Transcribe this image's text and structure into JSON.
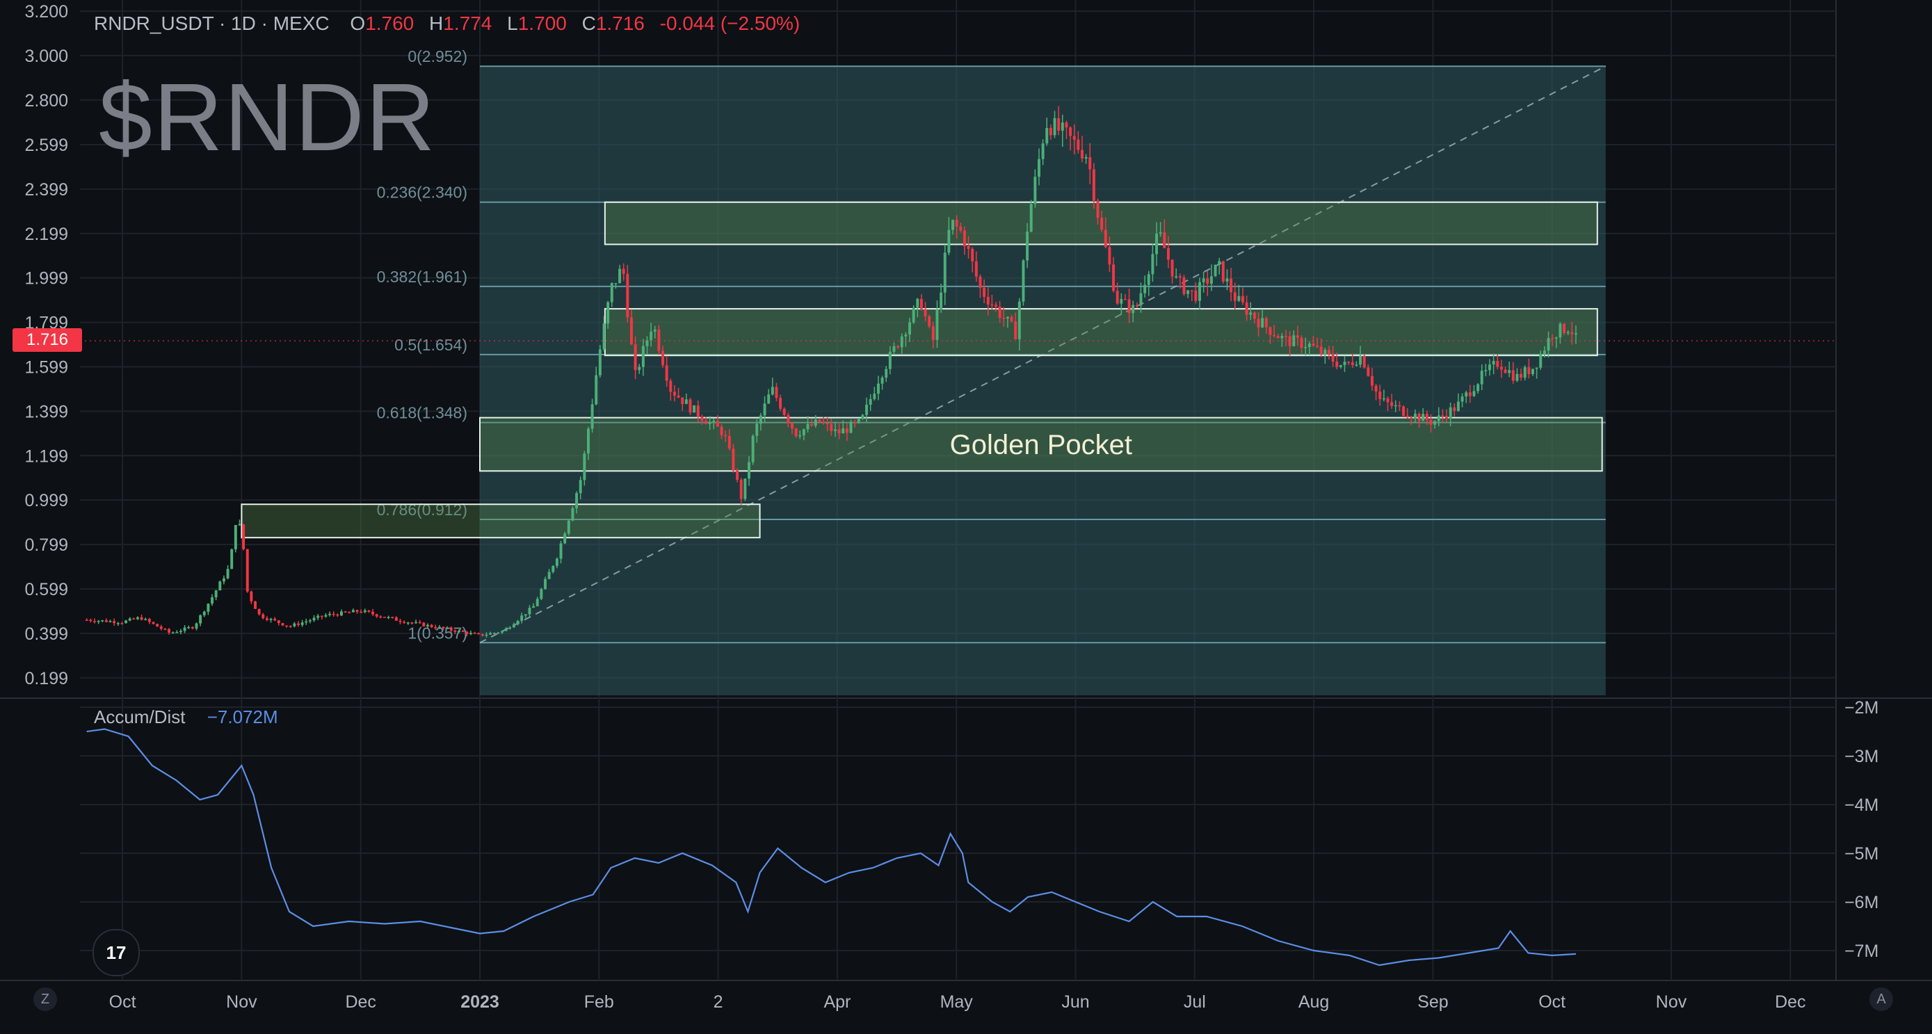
{
  "header": {
    "symbol": "RNDR_USDT · 1D · MEXC",
    "ohlc": [
      {
        "k": "O",
        "v": "1.760"
      },
      {
        "k": "H",
        "v": "1.774"
      },
      {
        "k": "L",
        "v": "1.700"
      },
      {
        "k": "C",
        "v": "1.716"
      },
      {
        "k": "",
        "v": "-0.044 (−2.50%)"
      }
    ]
  },
  "watermark": "$RNDR",
  "last_price": "1.716",
  "indicator": {
    "name": "Accum/Dist",
    "value": "−7.072M"
  },
  "colors": {
    "up": "#26a69a",
    "up_candle": "#4caf78",
    "down": "#f23645",
    "ad_line": "#5b8ee6",
    "fib_zone": "#2f5a5e",
    "box_border": "#e6f2ea"
  },
  "chart_data": [
    {
      "type": "candlestick",
      "title": "",
      "ylabel": "",
      "xlabel": "",
      "y_ticks": [
        "3.200",
        "3.000",
        "2.800",
        "2.599",
        "2.399",
        "2.199",
        "1.999",
        "1.799",
        "1.599",
        "1.399",
        "1.199",
        "0.999",
        "0.799",
        "0.599",
        "0.399",
        "0.199"
      ],
      "y_tick_values": [
        3.2,
        3.0,
        2.8,
        2.599,
        2.399,
        2.199,
        1.999,
        1.799,
        1.599,
        1.399,
        1.199,
        0.999,
        0.799,
        0.599,
        0.399,
        0.199
      ],
      "ylim": [
        0.12,
        3.25
      ],
      "x_ticks": [
        {
          "label": "Oct",
          "month": -3
        },
        {
          "label": "Nov",
          "month": -2
        },
        {
          "label": "Dec",
          "month": -1
        },
        {
          "label": "2023",
          "month": 0
        },
        {
          "label": "Feb",
          "month": 1
        },
        {
          "label": "2",
          "month": 2
        },
        {
          "label": "Apr",
          "month": 3
        },
        {
          "label": "May",
          "month": 4
        },
        {
          "label": "Jun",
          "month": 5
        },
        {
          "label": "Jul",
          "month": 6
        },
        {
          "label": "Aug",
          "month": 7
        },
        {
          "label": "Sep",
          "month": 8
        },
        {
          "label": "Oct",
          "month": 9
        },
        {
          "label": "Nov",
          "month": 10
        },
        {
          "label": "Dec",
          "month": 11
        }
      ],
      "price_path": [
        [
          -3.3,
          0.46
        ],
        [
          -3.0,
          0.45
        ],
        [
          -2.85,
          0.47
        ],
        [
          -2.6,
          0.4
        ],
        [
          -2.4,
          0.43
        ],
        [
          -2.25,
          0.56
        ],
        [
          -2.1,
          0.7
        ],
        [
          -2.05,
          0.9
        ],
        [
          -2.0,
          0.87
        ],
        [
          -1.95,
          0.58
        ],
        [
          -1.85,
          0.48
        ],
        [
          -1.6,
          0.43
        ],
        [
          -1.3,
          0.48
        ],
        [
          -1.0,
          0.5
        ],
        [
          -0.7,
          0.46
        ],
        [
          -0.4,
          0.43
        ],
        [
          0.0,
          0.39
        ],
        [
          0.2,
          0.41
        ],
        [
          0.45,
          0.52
        ],
        [
          0.65,
          0.75
        ],
        [
          0.85,
          1.1
        ],
        [
          1.0,
          1.65
        ],
        [
          1.1,
          1.95
        ],
        [
          1.2,
          2.05
        ],
        [
          1.3,
          1.55
        ],
        [
          1.45,
          1.8
        ],
        [
          1.6,
          1.5
        ],
        [
          1.8,
          1.4
        ],
        [
          2.05,
          1.3
        ],
        [
          2.2,
          1.0
        ],
        [
          2.3,
          1.3
        ],
        [
          2.45,
          1.5
        ],
        [
          2.65,
          1.3
        ],
        [
          2.85,
          1.35
        ],
        [
          3.0,
          1.3
        ],
        [
          3.2,
          1.35
        ],
        [
          3.35,
          1.55
        ],
        [
          3.55,
          1.75
        ],
        [
          3.7,
          1.9
        ],
        [
          3.8,
          1.7
        ],
        [
          3.95,
          2.25
        ],
        [
          4.05,
          2.2
        ],
        [
          4.2,
          1.95
        ],
        [
          4.35,
          1.85
        ],
        [
          4.5,
          1.75
        ],
        [
          4.6,
          2.25
        ],
        [
          4.75,
          2.7
        ],
        [
          4.9,
          2.65
        ],
        [
          5.1,
          2.55
        ],
        [
          5.2,
          2.25
        ],
        [
          5.35,
          1.9
        ],
        [
          5.5,
          1.85
        ],
        [
          5.7,
          2.2
        ],
        [
          5.85,
          1.98
        ],
        [
          6.0,
          1.92
        ],
        [
          6.2,
          2.05
        ],
        [
          6.35,
          1.9
        ],
        [
          6.55,
          1.8
        ],
        [
          6.75,
          1.72
        ],
        [
          6.95,
          1.7
        ],
        [
          7.1,
          1.65
        ],
        [
          7.25,
          1.6
        ],
        [
          7.4,
          1.65
        ],
        [
          7.55,
          1.45
        ],
        [
          7.75,
          1.4
        ],
        [
          8.0,
          1.35
        ],
        [
          8.2,
          1.42
        ],
        [
          8.4,
          1.55
        ],
        [
          8.55,
          1.62
        ],
        [
          8.7,
          1.55
        ],
        [
          8.85,
          1.6
        ],
        [
          9.0,
          1.75
        ],
        [
          9.15,
          1.78
        ],
        [
          9.2,
          1.72
        ]
      ],
      "fibonacci": {
        "start_month": 0.0,
        "end_month": 9.45,
        "top": 2.952,
        "levels": [
          {
            "ratio": "0",
            "price": 2.952,
            "label": "0(2.952)"
          },
          {
            "ratio": "0.236",
            "price": 2.34,
            "label": "0.236(2.340)"
          },
          {
            "ratio": "0.382",
            "price": 1.961,
            "label": "0.382(1.961)"
          },
          {
            "ratio": "0.5",
            "price": 1.654,
            "label": "0.5(1.654)"
          },
          {
            "ratio": "0.618",
            "price": 1.348,
            "label": "0.618(1.348)"
          },
          {
            "ratio": "0.786",
            "price": 0.912,
            "label": "0.786(0.912)"
          },
          {
            "ratio": "1",
            "price": 0.357,
            "label": "1(0.357)"
          }
        ]
      },
      "trendline": {
        "from": [
          0.0,
          0.357
        ],
        "to": [
          9.45,
          2.952
        ]
      },
      "zones": [
        {
          "name": "zone-resistance-upper",
          "x0": 1.05,
          "x1": 9.38,
          "y0": 2.15,
          "y1": 2.34,
          "label": ""
        },
        {
          "name": "zone-resistance-mid",
          "x0": 1.05,
          "x1": 9.38,
          "y0": 1.65,
          "y1": 1.86,
          "label": ""
        },
        {
          "name": "zone-golden-pocket",
          "x0": 0.0,
          "x1": 9.42,
          "y0": 1.13,
          "y1": 1.37,
          "label": "Golden Pocket"
        },
        {
          "name": "zone-support-lower",
          "x0": -2.0,
          "x1": 2.35,
          "y0": 0.83,
          "y1": 0.98,
          "label": ""
        }
      ]
    },
    {
      "type": "line",
      "title": "Accum/Dist",
      "y_ticks": [
        "−2M",
        "−3M",
        "−4M",
        "−5M",
        "−6M",
        "−7M"
      ],
      "y_tick_values": [
        -2,
        -3,
        -4,
        -5,
        -6,
        -7
      ],
      "ylim": [
        -7.4,
        -1.9
      ],
      "series": [
        {
          "name": "Accum/Dist",
          "points": [
            [
              -3.3,
              -2.5
            ],
            [
              -3.15,
              -2.45
            ],
            [
              -2.95,
              -2.6
            ],
            [
              -2.75,
              -3.2
            ],
            [
              -2.55,
              -3.5
            ],
            [
              -2.35,
              -3.9
            ],
            [
              -2.2,
              -3.8
            ],
            [
              -2.0,
              -3.2
            ],
            [
              -1.9,
              -3.8
            ],
            [
              -1.75,
              -5.3
            ],
            [
              -1.6,
              -6.2
            ],
            [
              -1.4,
              -6.5
            ],
            [
              -1.1,
              -6.4
            ],
            [
              -0.8,
              -6.45
            ],
            [
              -0.5,
              -6.4
            ],
            [
              -0.2,
              -6.55
            ],
            [
              0.0,
              -6.65
            ],
            [
              0.2,
              -6.6
            ],
            [
              0.45,
              -6.3
            ],
            [
              0.75,
              -6.0
            ],
            [
              0.95,
              -5.85
            ],
            [
              1.1,
              -5.3
            ],
            [
              1.3,
              -5.1
            ],
            [
              1.5,
              -5.2
            ],
            [
              1.7,
              -5.0
            ],
            [
              1.95,
              -5.25
            ],
            [
              2.15,
              -5.6
            ],
            [
              2.25,
              -6.2
            ],
            [
              2.35,
              -5.4
            ],
            [
              2.5,
              -4.9
            ],
            [
              2.7,
              -5.3
            ],
            [
              2.9,
              -5.6
            ],
            [
              3.1,
              -5.4
            ],
            [
              3.3,
              -5.3
            ],
            [
              3.5,
              -5.1
            ],
            [
              3.7,
              -5.0
            ],
            [
              3.85,
              -5.25
            ],
            [
              3.95,
              -4.6
            ],
            [
              4.05,
              -5.0
            ],
            [
              4.1,
              -5.6
            ],
            [
              4.3,
              -6.0
            ],
            [
              4.45,
              -6.2
            ],
            [
              4.6,
              -5.9
            ],
            [
              4.8,
              -5.8
            ],
            [
              5.0,
              -6.0
            ],
            [
              5.2,
              -6.2
            ],
            [
              5.45,
              -6.4
            ],
            [
              5.65,
              -6.0
            ],
            [
              5.85,
              -6.3
            ],
            [
              6.1,
              -6.3
            ],
            [
              6.4,
              -6.5
            ],
            [
              6.7,
              -6.8
            ],
            [
              7.0,
              -7.0
            ],
            [
              7.3,
              -7.1
            ],
            [
              7.55,
              -7.3
            ],
            [
              7.8,
              -7.2
            ],
            [
              8.05,
              -7.15
            ],
            [
              8.3,
              -7.05
            ],
            [
              8.55,
              -6.95
            ],
            [
              8.65,
              -6.6
            ],
            [
              8.8,
              -7.05
            ],
            [
              9.0,
              -7.1
            ],
            [
              9.2,
              -7.07
            ]
          ]
        }
      ]
    }
  ]
}
